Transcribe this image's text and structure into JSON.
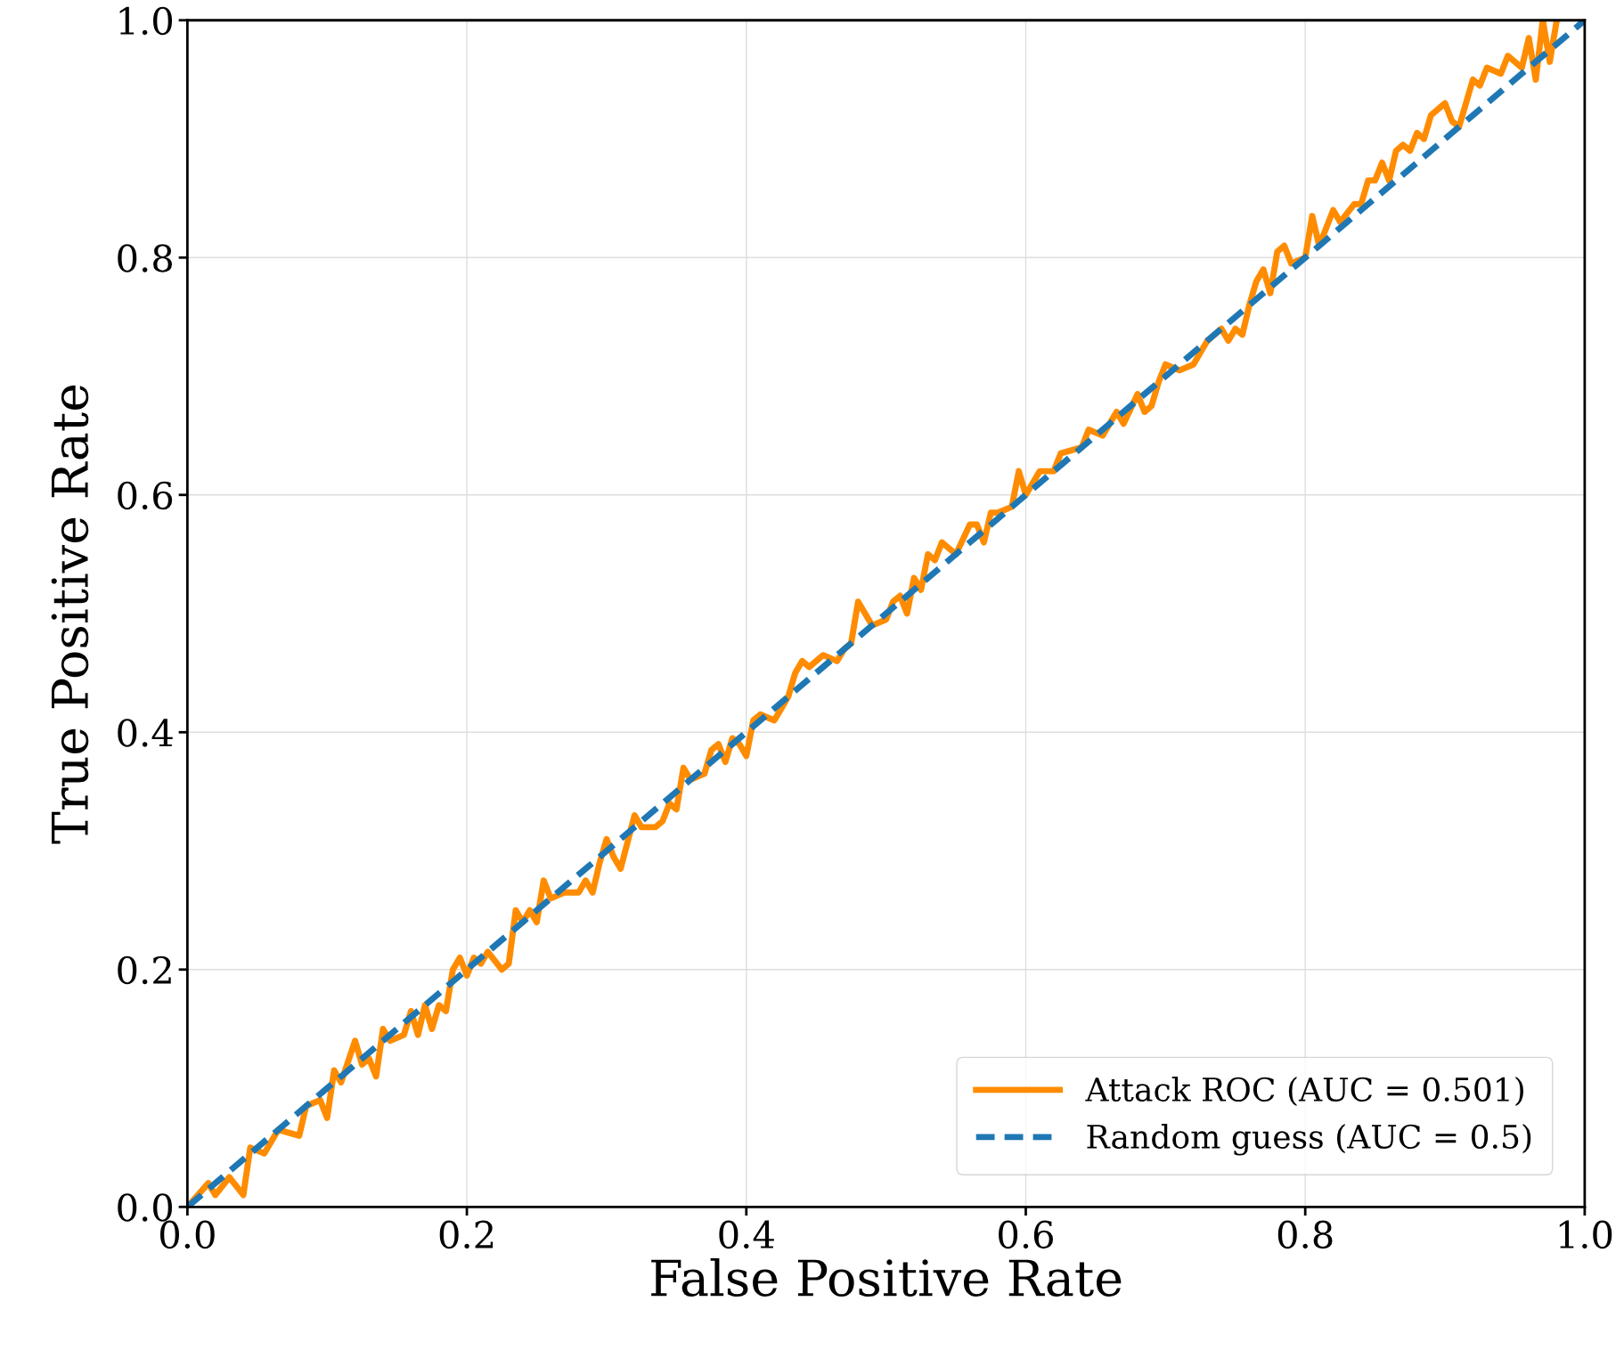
{
  "chart_data": {
    "type": "line",
    "xlabel": "False Positive Rate",
    "ylabel": "True Positive Rate",
    "xlim": [
      0.0,
      1.0
    ],
    "ylim": [
      0.0,
      1.0
    ],
    "xticks": [
      {
        "value": 0,
        "label": "0.0"
      },
      0.2,
      0.4,
      0.6,
      0.8,
      {
        "value": 1,
        "label": "1.0"
      }
    ],
    "yticks": [
      {
        "value": 0,
        "label": "0.0"
      },
      0.2,
      0.4,
      0.6,
      0.8,
      {
        "value": 1,
        "label": "1.0"
      }
    ],
    "grid": true,
    "legend": "bottom right",
    "series": [
      {
        "name": "Attack ROC (AUC = 0.501)",
        "color": "#ff8c00",
        "line_style": "solid",
        "x": [
          0,
          0.015,
          0.02,
          0.03,
          0.04,
          0.045,
          0.055,
          0.065,
          0.08,
          0.085,
          0.095,
          0.1,
          0.105,
          0.11,
          0.12,
          0.125,
          0.13,
          0.135,
          0.14,
          0.145,
          0.155,
          0.16,
          0.165,
          0.17,
          0.175,
          0.18,
          0.185,
          0.19,
          0.195,
          0.2,
          0.205,
          0.21,
          0.215,
          0.225,
          0.23,
          0.235,
          0.24,
          0.245,
          0.25,
          0.255,
          0.26,
          0.27,
          0.28,
          0.285,
          0.29,
          0.295,
          0.3,
          0.305,
          0.31,
          0.32,
          0.325,
          0.335,
          0.34,
          0.345,
          0.35,
          0.355,
          0.36,
          0.37,
          0.375,
          0.38,
          0.385,
          0.39,
          0.395,
          0.4,
          0.405,
          0.41,
          0.42,
          0.425,
          0.43,
          0.435,
          0.44,
          0.445,
          0.455,
          0.465,
          0.47,
          0.475,
          0.48,
          0.49,
          0.5,
          0.505,
          0.51,
          0.515,
          0.52,
          0.525,
          0.53,
          0.535,
          0.54,
          0.55,
          0.56,
          0.565,
          0.57,
          0.575,
          0.58,
          0.59,
          0.595,
          0.6,
          0.61,
          0.62,
          0.625,
          0.64,
          0.645,
          0.655,
          0.665,
          0.67,
          0.68,
          0.685,
          0.69,
          0.695,
          0.7,
          0.71,
          0.72,
          0.725,
          0.73,
          0.74,
          0.745,
          0.75,
          0.755,
          0.76,
          0.765,
          0.77,
          0.775,
          0.78,
          0.785,
          0.79,
          0.8,
          0.805,
          0.81,
          0.815,
          0.82,
          0.825,
          0.835,
          0.84,
          0.845,
          0.85,
          0.855,
          0.86,
          0.865,
          0.87,
          0.875,
          0.88,
          0.885,
          0.89,
          0.9,
          0.905,
          0.91,
          0.92,
          0.925,
          0.93,
          0.94,
          0.945,
          0.955,
          0.96,
          0.965,
          0.97,
          0.975,
          0.98
        ],
        "values": [
          0,
          0.02,
          0.01,
          0.025,
          0.01,
          0.05,
          0.045,
          0.065,
          0.06,
          0.085,
          0.09,
          0.075,
          0.115,
          0.105,
          0.14,
          0.12,
          0.125,
          0.11,
          0.15,
          0.14,
          0.145,
          0.165,
          0.145,
          0.17,
          0.15,
          0.17,
          0.165,
          0.2,
          0.21,
          0.195,
          0.21,
          0.205,
          0.215,
          0.2,
          0.205,
          0.25,
          0.24,
          0.25,
          0.24,
          0.275,
          0.26,
          0.265,
          0.265,
          0.275,
          0.265,
          0.29,
          0.31,
          0.295,
          0.285,
          0.33,
          0.32,
          0.32,
          0.325,
          0.34,
          0.335,
          0.37,
          0.36,
          0.365,
          0.385,
          0.39,
          0.375,
          0.395,
          0.39,
          0.38,
          0.41,
          0.415,
          0.41,
          0.42,
          0.43,
          0.45,
          0.46,
          0.455,
          0.465,
          0.46,
          0.47,
          0.475,
          0.51,
          0.49,
          0.495,
          0.51,
          0.515,
          0.5,
          0.53,
          0.52,
          0.55,
          0.545,
          0.56,
          0.55,
          0.575,
          0.575,
          0.56,
          0.585,
          0.585,
          0.59,
          0.62,
          0.6,
          0.62,
          0.62,
          0.635,
          0.64,
          0.655,
          0.65,
          0.67,
          0.66,
          0.685,
          0.67,
          0.675,
          0.695,
          0.71,
          0.705,
          0.71,
          0.72,
          0.73,
          0.74,
          0.73,
          0.74,
          0.735,
          0.76,
          0.78,
          0.79,
          0.77,
          0.805,
          0.81,
          0.795,
          0.8,
          0.835,
          0.81,
          0.825,
          0.84,
          0.83,
          0.845,
          0.845,
          0.865,
          0.865,
          0.88,
          0.865,
          0.89,
          0.895,
          0.89,
          0.905,
          0.9,
          0.92,
          0.93,
          0.915,
          0.91,
          0.95,
          0.945,
          0.96,
          0.955,
          0.97,
          0.96,
          0.985,
          0.95,
          1.0,
          0.965,
          1.0
        ]
      },
      {
        "name": "Random guess (AUC = 0.5)",
        "color": "#1f77b4",
        "line_style": "dashed",
        "x": [
          0,
          1
        ],
        "values": [
          0,
          1
        ]
      }
    ]
  }
}
